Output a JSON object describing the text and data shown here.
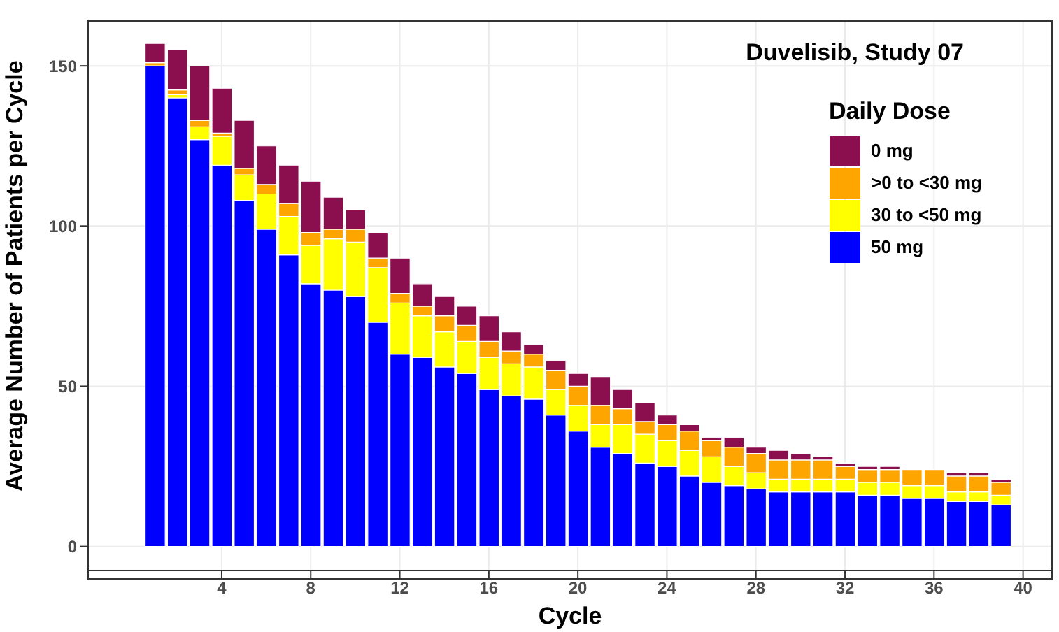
{
  "chart_data": {
    "type": "bar",
    "stacked": true,
    "xlabel": "Cycle",
    "ylabel": "Average Number of Patients per Cycle",
    "legend_title": "Daily Dose",
    "annotations": [
      "Duvelisib, Study 07"
    ],
    "x": [
      1,
      2,
      3,
      4,
      5,
      6,
      7,
      8,
      9,
      10,
      11,
      12,
      13,
      14,
      15,
      16,
      17,
      18,
      19,
      20,
      21,
      22,
      23,
      24,
      25,
      26,
      27,
      28,
      29,
      30,
      31,
      32,
      33,
      34,
      35,
      36,
      37,
      38,
      39
    ],
    "series": [
      {
        "name": "50 mg",
        "color": "#0000ff",
        "values": [
          150,
          140,
          127,
          119,
          108,
          99,
          91,
          82,
          80,
          78,
          70,
          60,
          59,
          56,
          54,
          49,
          47,
          46,
          41,
          36,
          31,
          29,
          26,
          25,
          22,
          20,
          19,
          18,
          17,
          17,
          17,
          17,
          16,
          16,
          15,
          15,
          14,
          14,
          13
        ]
      },
      {
        "name": "30 to <50 mg",
        "color": "#ffff00",
        "values": [
          0,
          1,
          4,
          9,
          8,
          11,
          12,
          12,
          16,
          17,
          17,
          16,
          13,
          11,
          10,
          10,
          10,
          10,
          8,
          8,
          7,
          9,
          9,
          8,
          8,
          8,
          6,
          5,
          4,
          4,
          4,
          4,
          4,
          4,
          4,
          4,
          3,
          3,
          3
        ]
      },
      {
        "name": ">0 to <30 mg",
        "color": "#ffa500",
        "values": [
          1,
          1.5,
          2,
          1,
          2,
          3,
          4,
          4,
          3,
          4,
          3,
          3,
          3,
          5,
          5,
          5,
          4,
          4,
          6,
          6,
          6,
          5,
          4,
          5,
          6,
          5,
          6,
          6,
          6,
          6,
          6,
          4,
          4,
          4,
          5,
          5,
          5,
          5,
          4
        ]
      },
      {
        "name": "0 mg",
        "color": "#8b0f4e",
        "values": [
          6,
          12.5,
          17,
          14,
          15,
          12,
          12,
          16,
          10,
          6,
          8,
          11,
          7,
          6,
          6,
          8,
          6,
          3,
          3,
          4,
          9,
          6,
          6,
          3,
          2,
          1,
          3,
          2,
          3,
          2,
          1,
          1,
          1,
          1,
          0,
          0,
          1,
          1,
          1
        ]
      }
    ],
    "xlim": [
      -2,
      41.3
    ],
    "xticks": [
      4,
      8,
      12,
      16,
      20,
      24,
      28,
      32,
      36,
      40
    ],
    "ylim": [
      -7.5,
      164
    ],
    "yticks": [
      0,
      50,
      100,
      150
    ],
    "grid": true,
    "legend": "top right"
  }
}
